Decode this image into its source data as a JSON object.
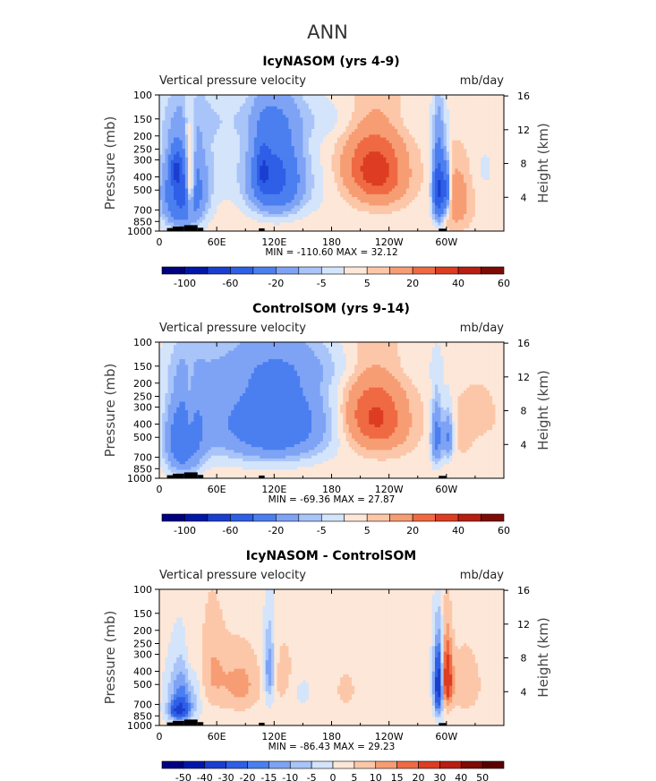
{
  "figure_title": "ANN",
  "chart_data": [
    {
      "type": "heatmap",
      "title": "IcyNASOM (yrs 4-9)",
      "left_label": "Vertical pressure velocity",
      "right_label": "mb/day",
      "ylabel": "Pressure (mb)",
      "y2label": "Height (km)",
      "x_ticks": [
        "0",
        "60E",
        "120E",
        "180",
        "120W",
        "60W"
      ],
      "x_tick_lon": [
        0,
        60,
        120,
        180,
        240,
        300
      ],
      "xlim": [
        0,
        360
      ],
      "y_ticks": [
        "100",
        "150",
        "200",
        "250",
        "300",
        "400",
        "500",
        "700",
        "850",
        "1000"
      ],
      "y_tick_p": [
        100,
        150,
        200,
        250,
        300,
        400,
        500,
        700,
        850,
        1000
      ],
      "ylim": [
        1000,
        100
      ],
      "height_ticks": [
        "4",
        "8",
        "12",
        "16"
      ],
      "height_km": [
        4,
        8,
        12,
        16
      ],
      "minmax_text": "MIN = -110.60   MAX =  32.12",
      "levels": [
        -120,
        -100,
        -80,
        -60,
        -40,
        -20,
        -10,
        -5,
        0,
        5,
        10,
        20,
        30,
        40,
        50,
        60
      ],
      "colorbar_labels": [
        "-100",
        "-60",
        "-20",
        "-5",
        "5",
        "20",
        "40",
        "60"
      ],
      "colorbar_label_pos": [
        1,
        3,
        5,
        7,
        9,
        11,
        13,
        15
      ],
      "field": {
        "background": 3,
        "blobs": [
          [
            25,
            550,
            20,
            330,
            -50
          ],
          [
            18,
            350,
            6,
            100,
            -40
          ],
          [
            32,
            450,
            5,
            250,
            45
          ],
          [
            45,
            300,
            40,
            300,
            -6
          ],
          [
            120,
            400,
            25,
            280,
            -45
          ],
          [
            108,
            360,
            7,
            150,
            -30
          ],
          [
            135,
            450,
            40,
            300,
            -8
          ],
          [
            230,
            380,
            28,
            230,
            25
          ],
          [
            215,
            320,
            28,
            180,
            12
          ],
          [
            292,
            500,
            6,
            280,
            -70
          ],
          [
            300,
            500,
            4,
            200,
            -40
          ],
          [
            310,
            600,
            15,
            300,
            14
          ],
          [
            340,
            350,
            12,
            150,
            -4
          ],
          [
            150,
            150,
            160,
            60,
            -5
          ],
          [
            30,
            180,
            10,
            80,
            4
          ]
        ]
      }
    },
    {
      "type": "heatmap",
      "title": "ControlSOM (yrs 9-14)",
      "left_label": "Vertical pressure velocity",
      "right_label": "mb/day",
      "ylabel": "Pressure (mb)",
      "y2label": "Height (km)",
      "x_ticks": [
        "0",
        "60E",
        "120E",
        "180",
        "120W",
        "60W"
      ],
      "x_tick_lon": [
        0,
        60,
        120,
        180,
        240,
        300
      ],
      "xlim": [
        0,
        360
      ],
      "y_ticks": [
        "100",
        "150",
        "200",
        "250",
        "300",
        "400",
        "500",
        "700",
        "850",
        "1000"
      ],
      "y_tick_p": [
        100,
        150,
        200,
        250,
        300,
        400,
        500,
        700,
        850,
        1000
      ],
      "ylim": [
        1000,
        100
      ],
      "height_ticks": [
        "4",
        "8",
        "12",
        "16"
      ],
      "height_km": [
        4,
        8,
        12,
        16
      ],
      "minmax_text": "MIN = -69.36   MAX =  27.87",
      "levels": [
        -120,
        -100,
        -80,
        -60,
        -40,
        -20,
        -10,
        -5,
        0,
        5,
        10,
        20,
        30,
        40,
        50,
        60
      ],
      "colorbar_labels": [
        "-100",
        "-60",
        "-20",
        "-5",
        "5",
        "20",
        "40",
        "60"
      ],
      "colorbar_label_pos": [
        1,
        3,
        5,
        7,
        9,
        11,
        13,
        15
      ],
      "field": {
        "background": 3,
        "blobs": [
          [
            25,
            550,
            18,
            330,
            -35
          ],
          [
            32,
            400,
            5,
            250,
            12
          ],
          [
            45,
            350,
            30,
            300,
            -8
          ],
          [
            110,
            400,
            55,
            300,
            -28
          ],
          [
            135,
            380,
            45,
            280,
            -15
          ],
          [
            230,
            380,
            30,
            230,
            22
          ],
          [
            215,
            320,
            28,
            180,
            10
          ],
          [
            290,
            500,
            6,
            250,
            -30
          ],
          [
            302,
            500,
            5,
            200,
            -25
          ],
          [
            330,
            450,
            25,
            300,
            5
          ],
          [
            340,
            600,
            15,
            150,
            -5
          ],
          [
            150,
            150,
            150,
            60,
            -5
          ]
        ]
      }
    },
    {
      "type": "heatmap",
      "title": "IcyNASOM - ControlSOM",
      "left_label": "Vertical pressure velocity",
      "right_label": "mb/day",
      "ylabel": "Pressure (mb)",
      "y2label": "Height (km)",
      "x_ticks": [
        "0",
        "60E",
        "120E",
        "180",
        "120W",
        "60W"
      ],
      "x_tick_lon": [
        0,
        60,
        120,
        180,
        240,
        300
      ],
      "xlim": [
        0,
        360
      ],
      "y_ticks": [
        "100",
        "150",
        "200",
        "250",
        "300",
        "400",
        "500",
        "700",
        "850",
        "1000"
      ],
      "y_tick_p": [
        100,
        150,
        200,
        250,
        300,
        400,
        500,
        700,
        850,
        1000
      ],
      "ylim": [
        1000,
        100
      ],
      "height_ticks": [
        "4",
        "8",
        "12",
        "16"
      ],
      "height_km": [
        4,
        8,
        12,
        16
      ],
      "minmax_text": "MIN = -86.43   MAX =  29.23",
      "levels": [
        -60,
        -50,
        -40,
        -30,
        -20,
        -15,
        -10,
        -5,
        0,
        5,
        10,
        15,
        20,
        30,
        40,
        50,
        60
      ],
      "colorbar_labels": [
        "-50",
        "-40",
        "-30",
        "-20",
        "-15",
        "-10",
        "-5",
        "0",
        "5",
        "10",
        "15",
        "20",
        "30",
        "40",
        "50"
      ],
      "colorbar_label_pos": [
        1,
        2,
        3,
        4,
        5,
        6,
        7,
        8,
        9,
        10,
        11,
        12,
        13,
        14,
        15
      ],
      "field": {
        "background": 2,
        "blobs": [
          [
            25,
            600,
            15,
            300,
            -20
          ],
          [
            20,
            780,
            10,
            120,
            -25
          ],
          [
            32,
            400,
            6,
            250,
            6
          ],
          [
            55,
            400,
            15,
            300,
            8
          ],
          [
            85,
            500,
            20,
            250,
            10
          ],
          [
            115,
            400,
            6,
            250,
            -18
          ],
          [
            130,
            450,
            15,
            250,
            6
          ],
          [
            145,
            550,
            15,
            200,
            -4
          ],
          [
            195,
            550,
            15,
            250,
            4
          ],
          [
            292,
            500,
            5,
            280,
            -45
          ],
          [
            300,
            450,
            6,
            250,
            28
          ],
          [
            320,
            500,
            15,
            250,
            8
          ],
          [
            270,
            300,
            15,
            150,
            -2
          ]
        ]
      }
    }
  ],
  "colors": {
    "palette": [
      "#000080",
      "#0018a8",
      "#1a3fd0",
      "#2e5fe6",
      "#4b7ff0",
      "#7ea3f5",
      "#a8c4f8",
      "#d3e4fb",
      "#fde7d8",
      "#fcc7a8",
      "#f79d74",
      "#ef6a43",
      "#dd3d22",
      "#b81e12",
      "#7e0b05",
      "#5a0000"
    ],
    "topography": "#000000"
  }
}
